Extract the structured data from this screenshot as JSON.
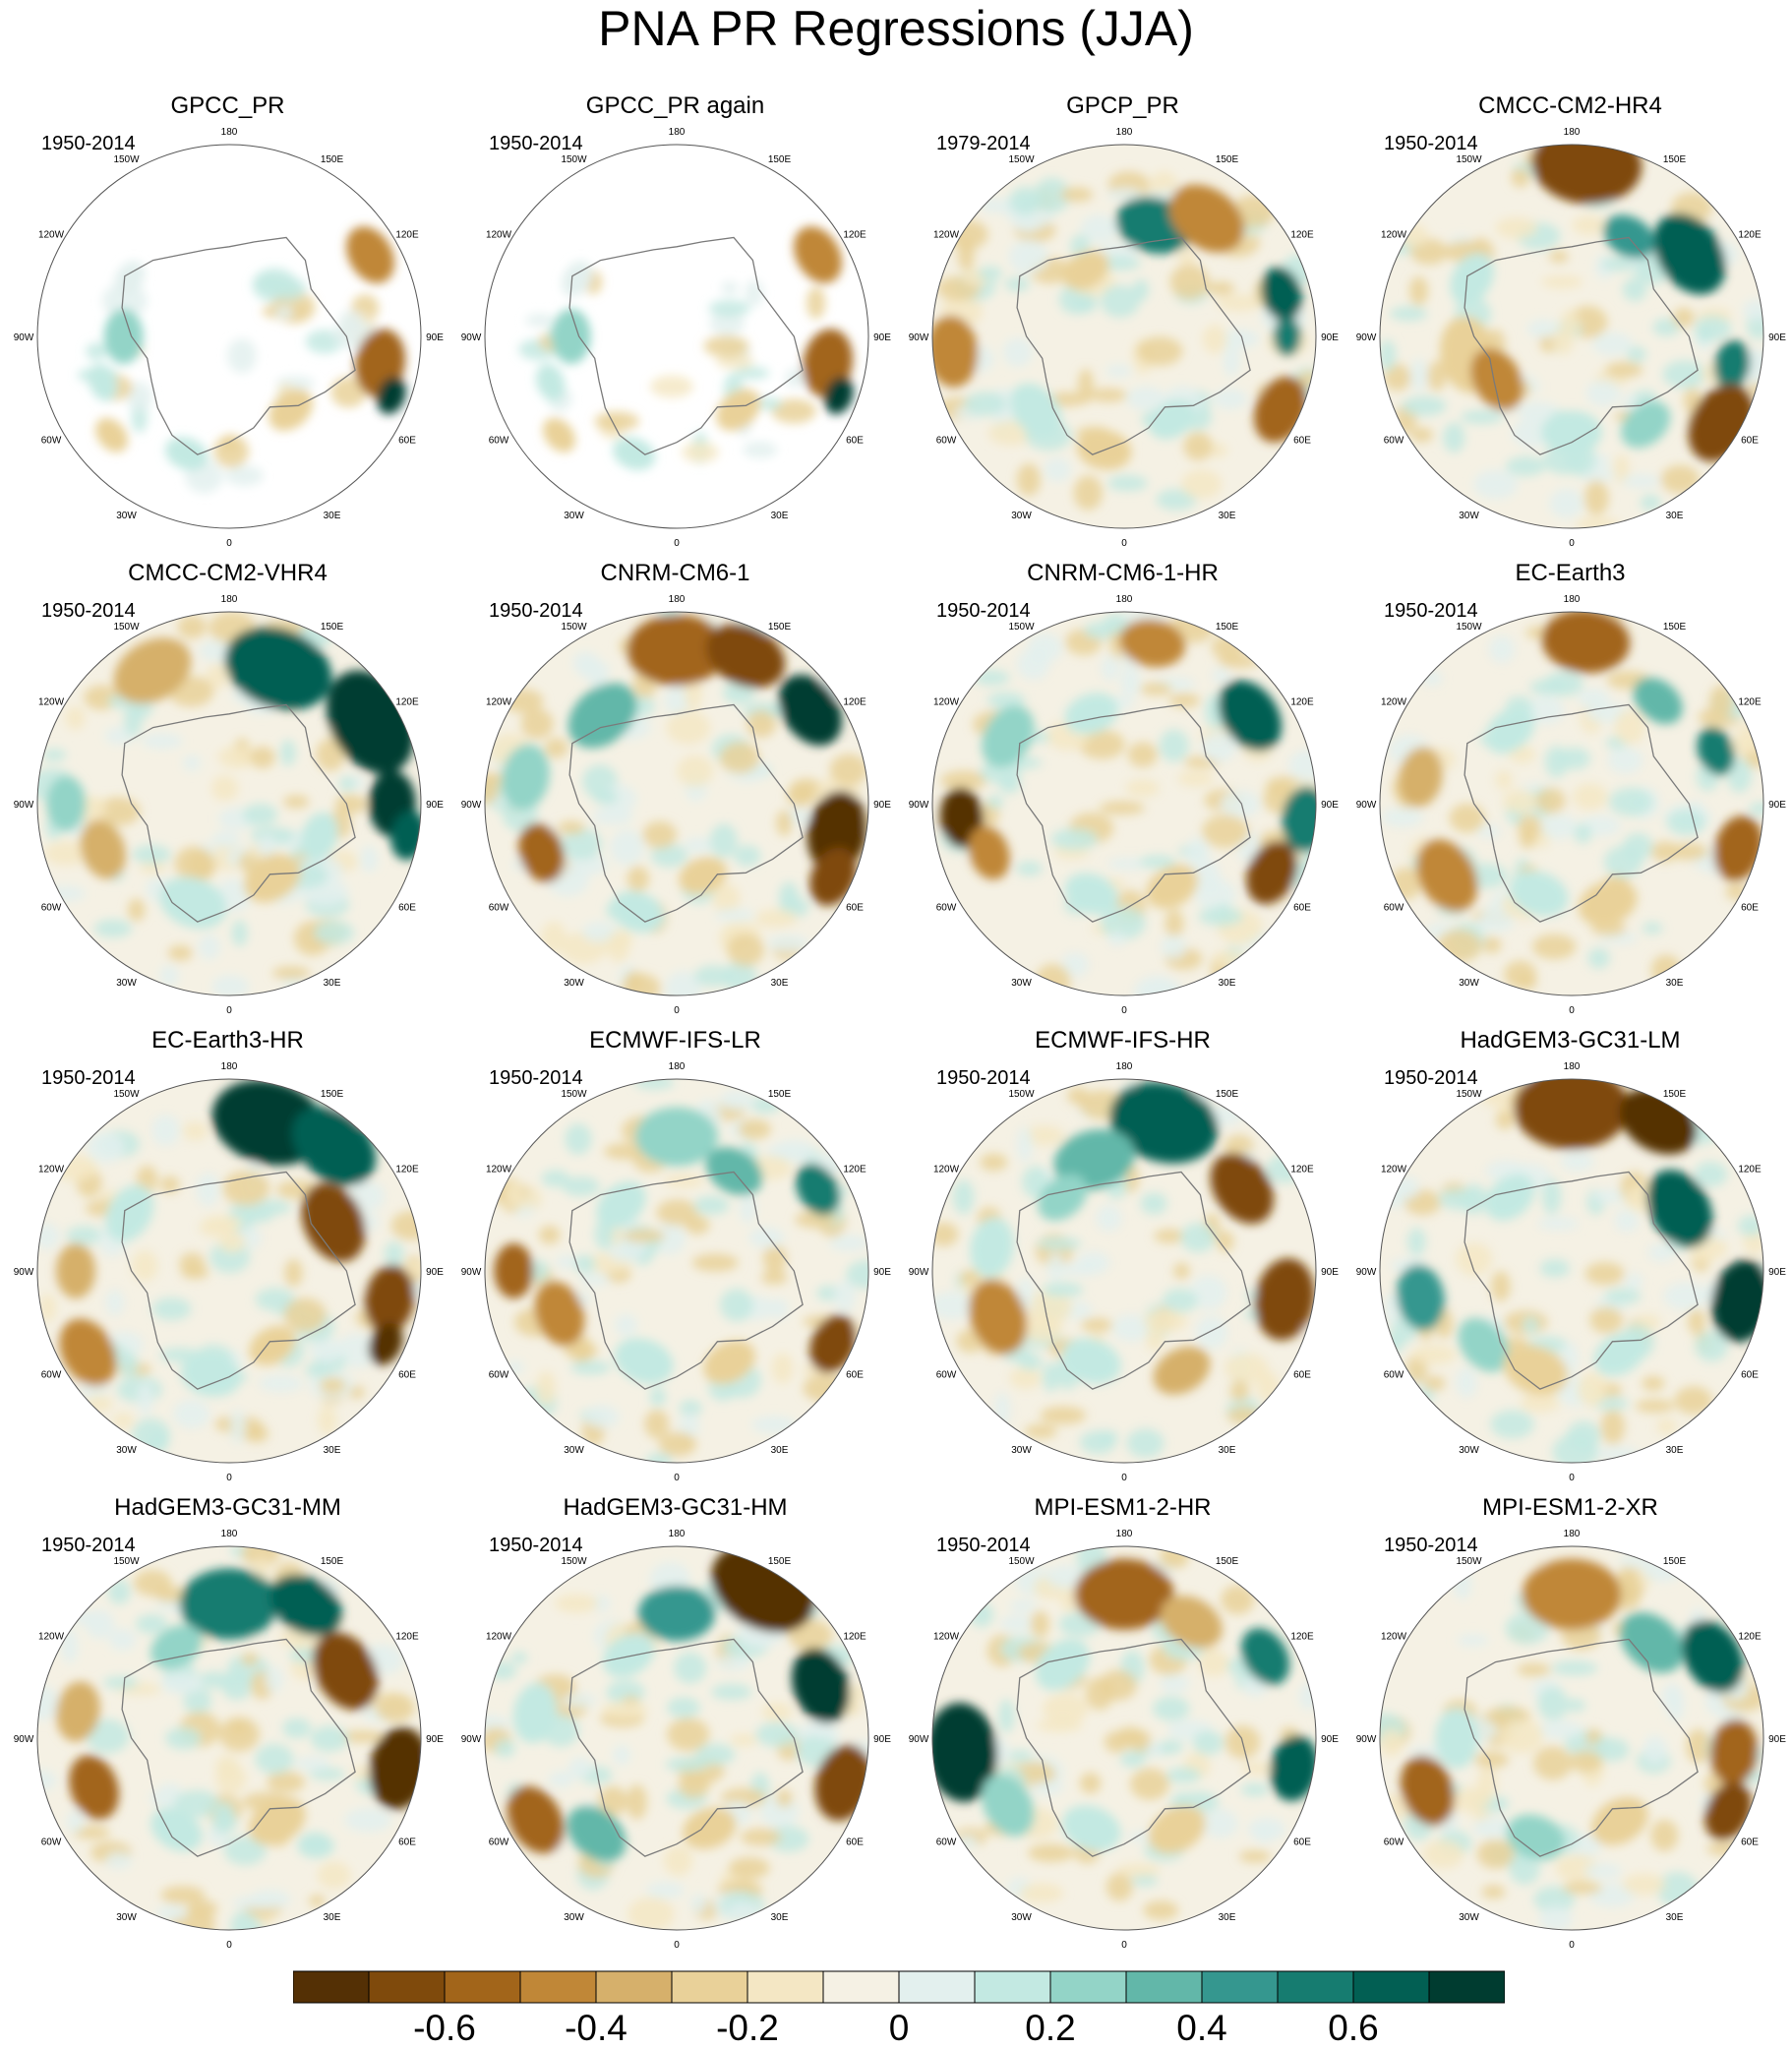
{
  "title": "PNA PR Regressions (JJA)",
  "panels": [
    {
      "name": "GPCC_PR",
      "period": "1950-2014",
      "pattern": 0
    },
    {
      "name": "GPCC_PR again",
      "period": "1950-2014",
      "pattern": 0
    },
    {
      "name": "GPCP_PR",
      "period": "1979-2014",
      "pattern": 1
    },
    {
      "name": "CMCC-CM2-HR4",
      "period": "1950-2014",
      "pattern": 2
    },
    {
      "name": "CMCC-CM2-VHR4",
      "period": "1950-2014",
      "pattern": 3
    },
    {
      "name": "CNRM-CM6-1",
      "period": "1950-2014",
      "pattern": 4
    },
    {
      "name": "CNRM-CM6-1-HR",
      "period": "1950-2014",
      "pattern": 5
    },
    {
      "name": "EC-Earth3",
      "period": "1950-2014",
      "pattern": 6
    },
    {
      "name": "EC-Earth3-HR",
      "period": "1950-2014",
      "pattern": 7
    },
    {
      "name": "ECMWF-IFS-LR",
      "period": "1950-2014",
      "pattern": 8
    },
    {
      "name": "ECMWF-IFS-HR",
      "period": "1950-2014",
      "pattern": 9
    },
    {
      "name": "HadGEM3-GC31-LM",
      "period": "1950-2014",
      "pattern": 10
    },
    {
      "name": "HadGEM3-GC31-MM",
      "period": "1950-2014",
      "pattern": 11
    },
    {
      "name": "HadGEM3-GC31-HM",
      "period": "1950-2014",
      "pattern": 12
    },
    {
      "name": "MPI-ESM1-2-HR",
      "period": "1950-2014",
      "pattern": 13
    },
    {
      "name": "MPI-ESM1-2-XR",
      "period": "1950-2014",
      "pattern": 14
    }
  ],
  "longitude_labels": [
    "180",
    "150E",
    "120E",
    "90E",
    "60E",
    "30E",
    "0",
    "30W",
    "60W",
    "90W",
    "120W",
    "150W"
  ],
  "colorbar": {
    "colors": [
      "#543005",
      "#7f4a0c",
      "#a2651a",
      "#c08737",
      "#d6b06b",
      "#e9d199",
      "#f4e7c4",
      "#f5f1e4",
      "#e3f0ee",
      "#c3e9e2",
      "#93d4c7",
      "#62b7a9",
      "#35978f",
      "#167c70",
      "#025f53",
      "#003c30"
    ],
    "tick_labels": [
      "-0.6",
      "-0.4",
      "-0.2",
      "0",
      "0.2",
      "0.4",
      "0.6"
    ],
    "tick_values": [
      -0.6,
      -0.4,
      -0.2,
      0,
      0.2,
      0.4,
      0.6
    ],
    "range": [
      -0.8,
      0.8
    ]
  }
}
